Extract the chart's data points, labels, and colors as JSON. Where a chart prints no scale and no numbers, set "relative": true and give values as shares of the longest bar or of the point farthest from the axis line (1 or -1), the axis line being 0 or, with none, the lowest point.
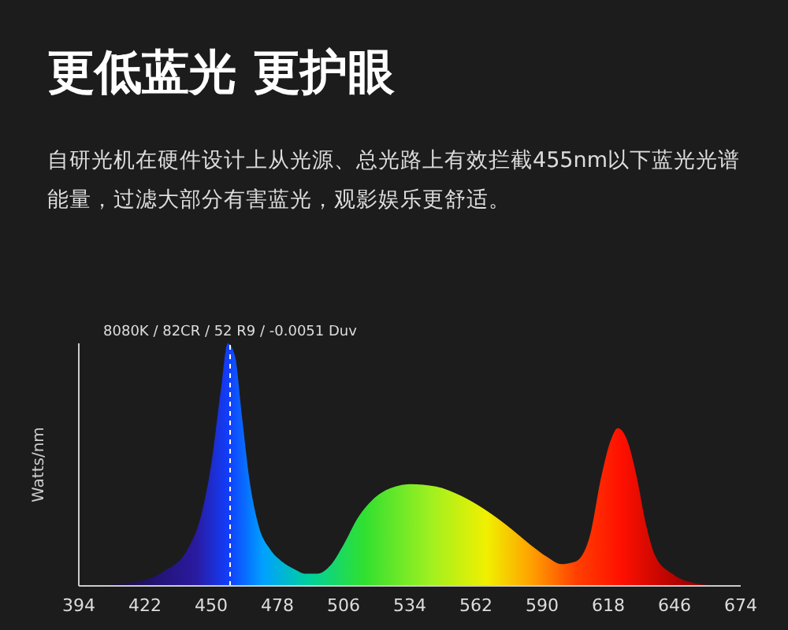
{
  "chart_data": {
    "type": "area",
    "title": "更低蓝光 更护眼",
    "subtitle": "自研光机在硬件设计上从光源、总光路上有效拦截455nm以下蓝光光谱能量，过滤大部分有害蓝光，观影娱乐更舒适。",
    "ylabel": "Watts/nm",
    "relative": true,
    "x": [
      400,
      420,
      430,
      440,
      446,
      450,
      454,
      457,
      460,
      463,
      466,
      470,
      475,
      480,
      485,
      490,
      495,
      500,
      506,
      512,
      520,
      528,
      534,
      545,
      556,
      565,
      575,
      585,
      592,
      598,
      604,
      610,
      615,
      619,
      622,
      626,
      630,
      634,
      638,
      645,
      655,
      665
    ],
    "values": [
      0,
      0.02,
      0.06,
      0.15,
      0.3,
      0.5,
      0.8,
      1,
      0.95,
      0.7,
      0.45,
      0.25,
      0.15,
      0.1,
      0.07,
      0.05,
      0.05,
      0.08,
      0.17,
      0.28,
      0.37,
      0.41,
      0.42,
      0.41,
      0.37,
      0.32,
      0.25,
      0.17,
      0.12,
      0.09,
      0.1,
      0.2,
      0.45,
      0.6,
      0.65,
      0.6,
      0.45,
      0.25,
      0.12,
      0.05,
      0.01,
      0
    ],
    "xlim": [
      394,
      674
    ],
    "xticks": [
      394,
      422,
      450,
      478,
      506,
      534,
      562,
      590,
      618,
      646,
      674
    ],
    "ref_lines": [
      {
        "axis": "x",
        "value": 458,
        "label": "8080K / 82CR / 52 R9 / -0.0051 Duv",
        "color": "#ffffff",
        "line_style": "dashed"
      }
    ],
    "grid": false,
    "legend": false
  }
}
